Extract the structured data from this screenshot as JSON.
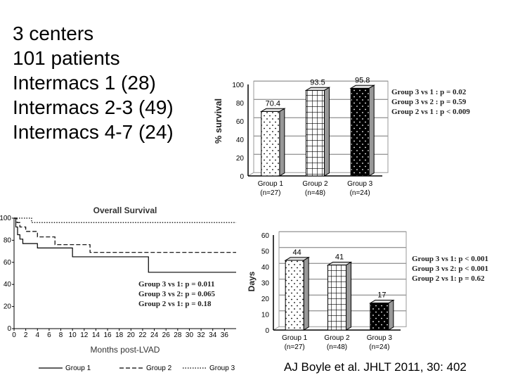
{
  "intro": {
    "lines": [
      "3 centers",
      "101 patients",
      "Intermacs 1 (28)",
      "Intermacs 2-3 (49)",
      "Intermacs 4-7 (24)"
    ]
  },
  "citation": "AJ Boyle et al. JHLT 2011, 30: 402",
  "chart_data": [
    {
      "type": "bar",
      "title": "",
      "xlabel": "",
      "ylabel": "% survival",
      "ylim": [
        0,
        100
      ],
      "yticks": [
        0,
        20,
        40,
        60,
        80,
        100
      ],
      "categories": [
        "Group 1",
        "Group 2",
        "Group 3"
      ],
      "category_sublabels": [
        "(n=27)",
        "(n=48)",
        "(n=24)"
      ],
      "values": [
        70.4,
        93.5,
        95.8
      ],
      "value_labels": [
        "70.4",
        "93.5",
        "95.8"
      ],
      "patterns": [
        "dots",
        "grid",
        "black-dots"
      ],
      "grid": true,
      "annotations": [
        "Group 3 vs 1 :  p = 0.02",
        "Group 3 vs 2 :  p = 0.59",
        "Group 2 vs 1 :  p < 0.009"
      ]
    },
    {
      "type": "line",
      "title": "Overall Survival",
      "xlabel": "Months post-LVAD",
      "ylabel": "",
      "xlim": [
        0,
        38
      ],
      "ylim": [
        0,
        100
      ],
      "xticks": [
        0,
        2,
        4,
        6,
        8,
        10,
        12,
        14,
        16,
        18,
        20,
        22,
        24,
        26,
        28,
        30,
        32,
        34,
        36
      ],
      "yticks": [
        0,
        20,
        40,
        60,
        80,
        100
      ],
      "grid": false,
      "series": [
        {
          "name": "Group 1",
          "style": "solid",
          "x": [
            0,
            0.3,
            0.6,
            1,
            1.5,
            4,
            10,
            23,
            38
          ],
          "y": [
            100,
            92,
            85,
            81,
            77,
            73,
            65,
            51,
            51
          ]
        },
        {
          "name": "Group 2",
          "style": "dashed",
          "x": [
            0,
            0.5,
            1,
            2,
            4,
            7,
            13,
            38
          ],
          "y": [
            100,
            96,
            92,
            88,
            83,
            76,
            69,
            69
          ]
        },
        {
          "name": "Group 3",
          "style": "dotted",
          "x": [
            0,
            3,
            38
          ],
          "y": [
            100,
            96,
            96
          ]
        }
      ],
      "annotations": [
        "Group 3 vs 1:  p = 0.011",
        "Group 3 vs 2:  p = 0.065",
        "Group 2 vs 1:  p = 0.18"
      ],
      "legend": [
        "Group 1",
        "Group 2",
        "Group 3"
      ],
      "legend_position": "bottom"
    },
    {
      "type": "bar",
      "title": "",
      "xlabel": "",
      "ylabel": "Days",
      "ylim": [
        0,
        60
      ],
      "yticks": [
        0,
        10,
        20,
        30,
        40,
        50,
        60
      ],
      "categories": [
        "Group 1",
        "Group 2",
        "Group 3"
      ],
      "category_sublabels": [
        "(n=27)",
        "(n=48)",
        "(n=24)"
      ],
      "values": [
        44,
        41,
        17
      ],
      "value_labels": [
        "44",
        "41",
        "17"
      ],
      "patterns": [
        "dots",
        "grid",
        "black-dots"
      ],
      "grid": true,
      "annotations": [
        "Group 3 vs 1:  p < 0.001",
        "Group 3 vs 2:  p < 0.001",
        "Group 2 vs 1:  p = 0.62"
      ]
    }
  ]
}
